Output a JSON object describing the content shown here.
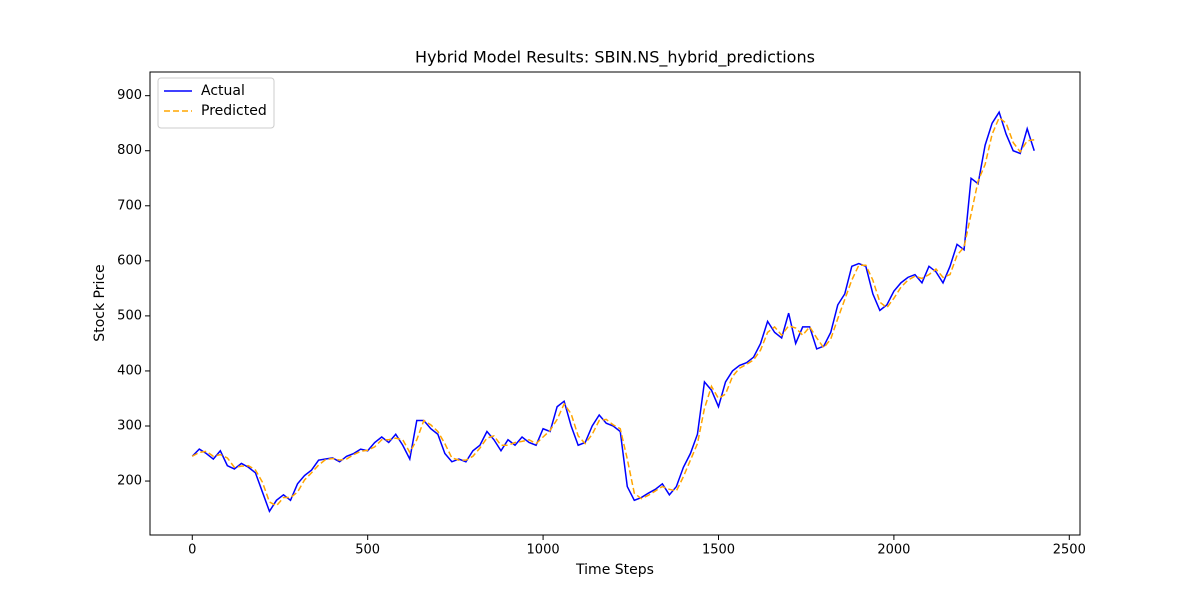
{
  "chart_data": {
    "type": "line",
    "title": "Hybrid Model Results: SBIN.NS_hybrid_predictions",
    "x_label": "Time Steps",
    "y_label": "Stock Price",
    "x": [
      0,
      20,
      40,
      60,
      80,
      100,
      120,
      140,
      160,
      180,
      200,
      220,
      240,
      260,
      280,
      300,
      320,
      340,
      360,
      380,
      400,
      420,
      440,
      460,
      480,
      500,
      520,
      540,
      560,
      580,
      600,
      620,
      640,
      660,
      680,
      700,
      720,
      740,
      760,
      780,
      800,
      820,
      840,
      860,
      880,
      900,
      920,
      940,
      960,
      980,
      1000,
      1020,
      1040,
      1060,
      1080,
      1100,
      1120,
      1140,
      1160,
      1180,
      1200,
      1220,
      1240,
      1260,
      1280,
      1300,
      1320,
      1340,
      1360,
      1380,
      1400,
      1420,
      1440,
      1460,
      1480,
      1500,
      1520,
      1540,
      1560,
      1580,
      1600,
      1620,
      1640,
      1660,
      1680,
      1700,
      1720,
      1740,
      1760,
      1780,
      1800,
      1820,
      1840,
      1860,
      1880,
      1900,
      1920,
      1940,
      1960,
      1980,
      2000,
      2020,
      2040,
      2060,
      2080,
      2100,
      2120,
      2140,
      2160,
      2180,
      2200,
      2220,
      2240,
      2260,
      2280,
      2300,
      2320,
      2340,
      2360,
      2380,
      2400
    ],
    "series": [
      {
        "name": "Actual",
        "color": "#0000ff",
        "dash": false,
        "values": [
          245,
          258,
          250,
          240,
          255,
          228,
          222,
          232,
          225,
          215,
          180,
          145,
          165,
          175,
          165,
          195,
          210,
          220,
          238,
          240,
          242,
          235,
          245,
          250,
          258,
          255,
          270,
          280,
          270,
          285,
          265,
          240,
          310,
          310,
          295,
          285,
          250,
          235,
          240,
          235,
          255,
          265,
          290,
          275,
          255,
          275,
          265,
          280,
          270,
          265,
          295,
          290,
          335,
          345,
          300,
          265,
          270,
          300,
          320,
          305,
          300,
          290,
          190,
          165,
          170,
          178,
          185,
          195,
          175,
          190,
          225,
          250,
          285,
          380,
          365,
          335,
          380,
          400,
          410,
          415,
          425,
          450,
          490,
          470,
          460,
          505,
          450,
          480,
          480,
          440,
          445,
          470,
          520,
          540,
          590,
          595,
          590,
          540,
          510,
          520,
          545,
          560,
          570,
          575,
          560,
          590,
          580,
          560,
          590,
          630,
          620,
          750,
          740,
          810,
          850,
          870,
          830,
          800,
          795,
          840,
          800
        ]
      },
      {
        "name": "Predicted",
        "color": "#ffa500",
        "dash": true,
        "values": [
          245,
          252,
          254,
          245,
          248,
          242,
          225,
          227,
          228,
          220,
          198,
          162,
          155,
          170,
          170,
          180,
          202,
          215,
          229,
          239,
          241,
          238,
          240,
          248,
          254,
          256,
          262,
          275,
          275,
          278,
          275,
          252,
          275,
          310,
          302,
          290,
          268,
          242,
          238,
          238,
          245,
          260,
          278,
          282,
          265,
          265,
          270,
          272,
          275,
          268,
          280,
          292,
          312,
          340,
          322,
          282,
          268,
          285,
          310,
          312,
          302,
          295,
          240,
          178,
          168,
          174,
          182,
          190,
          185,
          182,
          208,
          238,
          268,
          332,
          372,
          350,
          358,
          390,
          405,
          412,
          420,
          438,
          470,
          480,
          465,
          482,
          478,
          465,
          480,
          460,
          442,
          458,
          495,
          530,
          565,
          592,
          592,
          565,
          525,
          515,
          532,
          552,
          565,
          572,
          568,
          575,
          585,
          570,
          575,
          610,
          625,
          685,
          745,
          775,
          830,
          860,
          850,
          815,
          798,
          818,
          820
        ]
      }
    ],
    "xlim": [
      -120.5,
      2530.5
    ],
    "ylim": [
      102,
      943
    ],
    "xticks": [
      0,
      500,
      1000,
      1500,
      2000,
      2500
    ],
    "yticks": [
      200,
      300,
      400,
      500,
      600,
      700,
      800,
      900
    ],
    "legend": "upper left",
    "grid": false
  }
}
